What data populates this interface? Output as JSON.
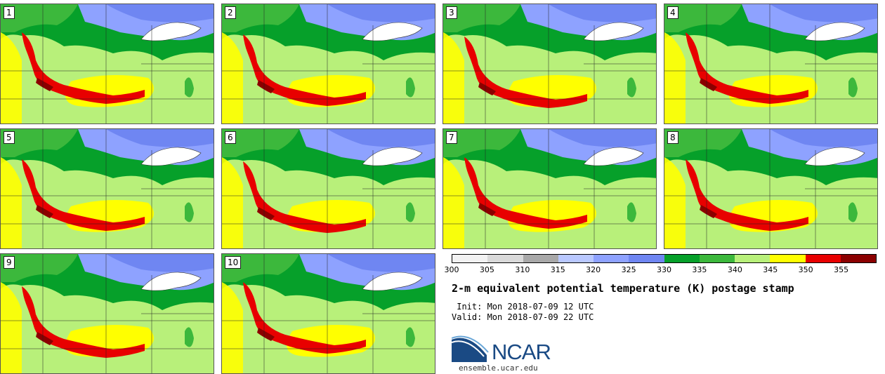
{
  "panels": [
    {
      "label": "1"
    },
    {
      "label": "2"
    },
    {
      "label": "3"
    },
    {
      "label": "4"
    },
    {
      "label": "5"
    },
    {
      "label": "6"
    },
    {
      "label": "7"
    },
    {
      "label": "8"
    },
    {
      "label": "9"
    },
    {
      "label": "10"
    }
  ],
  "colorbar": {
    "colors": [
      "#f2f2f2",
      "#d9d9d9",
      "#a8a8a8",
      "#b9c8ff",
      "#8ea2ff",
      "#6f86f2",
      "#06a02a",
      "#3cb83c",
      "#b8f07a",
      "#ffff00",
      "#e80000",
      "#8b0000"
    ],
    "ticks": [
      "300",
      "305",
      "310",
      "315",
      "320",
      "325",
      "330",
      "335",
      "340",
      "345",
      "350",
      "355"
    ]
  },
  "info": {
    "title": "2-m equivalent potential temperature (K) postage stamp",
    "init": " Init: Mon 2018-07-09 12 UTC",
    "valid": "Valid: Mon 2018-07-09 22 UTC"
  },
  "logo": {
    "text": "NCAR",
    "site": "ensemble.ucar.edu"
  }
}
